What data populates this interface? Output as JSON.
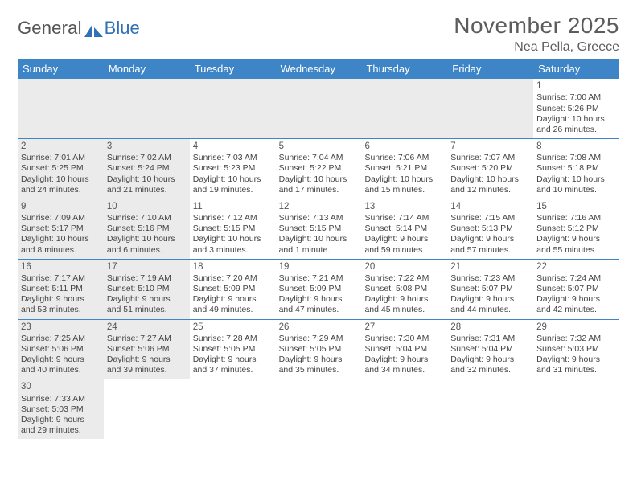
{
  "logo": {
    "text1": "General",
    "text2": "Blue"
  },
  "title": "November 2025",
  "location": "Nea Pella, Greece",
  "colors": {
    "header_bg": "#3d85c6",
    "shade_bg": "#ebebeb",
    "row_border": "#3d85c6",
    "logo_blue": "#2f70b7",
    "text_gray": "#5c5c5c"
  },
  "weekdays": [
    "Sunday",
    "Monday",
    "Tuesday",
    "Wednesday",
    "Thursday",
    "Friday",
    "Saturday"
  ],
  "weeks": [
    [
      {
        "day": "",
        "shaded": true
      },
      {
        "day": "",
        "shaded": true
      },
      {
        "day": "",
        "shaded": true
      },
      {
        "day": "",
        "shaded": true
      },
      {
        "day": "",
        "shaded": true
      },
      {
        "day": "",
        "shaded": true
      },
      {
        "day": "1",
        "shaded": false,
        "sunrise": "Sunrise: 7:00 AM",
        "sunset": "Sunset: 5:26 PM",
        "daylight": "Daylight: 10 hours and 26 minutes."
      }
    ],
    [
      {
        "day": "2",
        "shaded": true,
        "sunrise": "Sunrise: 7:01 AM",
        "sunset": "Sunset: 5:25 PM",
        "daylight": "Daylight: 10 hours and 24 minutes."
      },
      {
        "day": "3",
        "shaded": true,
        "sunrise": "Sunrise: 7:02 AM",
        "sunset": "Sunset: 5:24 PM",
        "daylight": "Daylight: 10 hours and 21 minutes."
      },
      {
        "day": "4",
        "shaded": false,
        "sunrise": "Sunrise: 7:03 AM",
        "sunset": "Sunset: 5:23 PM",
        "daylight": "Daylight: 10 hours and 19 minutes."
      },
      {
        "day": "5",
        "shaded": false,
        "sunrise": "Sunrise: 7:04 AM",
        "sunset": "Sunset: 5:22 PM",
        "daylight": "Daylight: 10 hours and 17 minutes."
      },
      {
        "day": "6",
        "shaded": false,
        "sunrise": "Sunrise: 7:06 AM",
        "sunset": "Sunset: 5:21 PM",
        "daylight": "Daylight: 10 hours and 15 minutes."
      },
      {
        "day": "7",
        "shaded": false,
        "sunrise": "Sunrise: 7:07 AM",
        "sunset": "Sunset: 5:20 PM",
        "daylight": "Daylight: 10 hours and 12 minutes."
      },
      {
        "day": "8",
        "shaded": false,
        "sunrise": "Sunrise: 7:08 AM",
        "sunset": "Sunset: 5:18 PM",
        "daylight": "Daylight: 10 hours and 10 minutes."
      }
    ],
    [
      {
        "day": "9",
        "shaded": true,
        "sunrise": "Sunrise: 7:09 AM",
        "sunset": "Sunset: 5:17 PM",
        "daylight": "Daylight: 10 hours and 8 minutes."
      },
      {
        "day": "10",
        "shaded": true,
        "sunrise": "Sunrise: 7:10 AM",
        "sunset": "Sunset: 5:16 PM",
        "daylight": "Daylight: 10 hours and 6 minutes."
      },
      {
        "day": "11",
        "shaded": false,
        "sunrise": "Sunrise: 7:12 AM",
        "sunset": "Sunset: 5:15 PM",
        "daylight": "Daylight: 10 hours and 3 minutes."
      },
      {
        "day": "12",
        "shaded": false,
        "sunrise": "Sunrise: 7:13 AM",
        "sunset": "Sunset: 5:15 PM",
        "daylight": "Daylight: 10 hours and 1 minute."
      },
      {
        "day": "13",
        "shaded": false,
        "sunrise": "Sunrise: 7:14 AM",
        "sunset": "Sunset: 5:14 PM",
        "daylight": "Daylight: 9 hours and 59 minutes."
      },
      {
        "day": "14",
        "shaded": false,
        "sunrise": "Sunrise: 7:15 AM",
        "sunset": "Sunset: 5:13 PM",
        "daylight": "Daylight: 9 hours and 57 minutes."
      },
      {
        "day": "15",
        "shaded": false,
        "sunrise": "Sunrise: 7:16 AM",
        "sunset": "Sunset: 5:12 PM",
        "daylight": "Daylight: 9 hours and 55 minutes."
      }
    ],
    [
      {
        "day": "16",
        "shaded": true,
        "sunrise": "Sunrise: 7:17 AM",
        "sunset": "Sunset: 5:11 PM",
        "daylight": "Daylight: 9 hours and 53 minutes."
      },
      {
        "day": "17",
        "shaded": true,
        "sunrise": "Sunrise: 7:19 AM",
        "sunset": "Sunset: 5:10 PM",
        "daylight": "Daylight: 9 hours and 51 minutes."
      },
      {
        "day": "18",
        "shaded": false,
        "sunrise": "Sunrise: 7:20 AM",
        "sunset": "Sunset: 5:09 PM",
        "daylight": "Daylight: 9 hours and 49 minutes."
      },
      {
        "day": "19",
        "shaded": false,
        "sunrise": "Sunrise: 7:21 AM",
        "sunset": "Sunset: 5:09 PM",
        "daylight": "Daylight: 9 hours and 47 minutes."
      },
      {
        "day": "20",
        "shaded": false,
        "sunrise": "Sunrise: 7:22 AM",
        "sunset": "Sunset: 5:08 PM",
        "daylight": "Daylight: 9 hours and 45 minutes."
      },
      {
        "day": "21",
        "shaded": false,
        "sunrise": "Sunrise: 7:23 AM",
        "sunset": "Sunset: 5:07 PM",
        "daylight": "Daylight: 9 hours and 44 minutes."
      },
      {
        "day": "22",
        "shaded": false,
        "sunrise": "Sunrise: 7:24 AM",
        "sunset": "Sunset: 5:07 PM",
        "daylight": "Daylight: 9 hours and 42 minutes."
      }
    ],
    [
      {
        "day": "23",
        "shaded": true,
        "sunrise": "Sunrise: 7:25 AM",
        "sunset": "Sunset: 5:06 PM",
        "daylight": "Daylight: 9 hours and 40 minutes."
      },
      {
        "day": "24",
        "shaded": true,
        "sunrise": "Sunrise: 7:27 AM",
        "sunset": "Sunset: 5:06 PM",
        "daylight": "Daylight: 9 hours and 39 minutes."
      },
      {
        "day": "25",
        "shaded": false,
        "sunrise": "Sunrise: 7:28 AM",
        "sunset": "Sunset: 5:05 PM",
        "daylight": "Daylight: 9 hours and 37 minutes."
      },
      {
        "day": "26",
        "shaded": false,
        "sunrise": "Sunrise: 7:29 AM",
        "sunset": "Sunset: 5:05 PM",
        "daylight": "Daylight: 9 hours and 35 minutes."
      },
      {
        "day": "27",
        "shaded": false,
        "sunrise": "Sunrise: 7:30 AM",
        "sunset": "Sunset: 5:04 PM",
        "daylight": "Daylight: 9 hours and 34 minutes."
      },
      {
        "day": "28",
        "shaded": false,
        "sunrise": "Sunrise: 7:31 AM",
        "sunset": "Sunset: 5:04 PM",
        "daylight": "Daylight: 9 hours and 32 minutes."
      },
      {
        "day": "29",
        "shaded": false,
        "sunrise": "Sunrise: 7:32 AM",
        "sunset": "Sunset: 5:03 PM",
        "daylight": "Daylight: 9 hours and 31 minutes."
      }
    ],
    [
      {
        "day": "30",
        "shaded": true,
        "sunrise": "Sunrise: 7:33 AM",
        "sunset": "Sunset: 5:03 PM",
        "daylight": "Daylight: 9 hours and 29 minutes."
      },
      {
        "day": "",
        "shaded": false
      },
      {
        "day": "",
        "shaded": false
      },
      {
        "day": "",
        "shaded": false
      },
      {
        "day": "",
        "shaded": false
      },
      {
        "day": "",
        "shaded": false
      },
      {
        "day": "",
        "shaded": false
      }
    ]
  ]
}
